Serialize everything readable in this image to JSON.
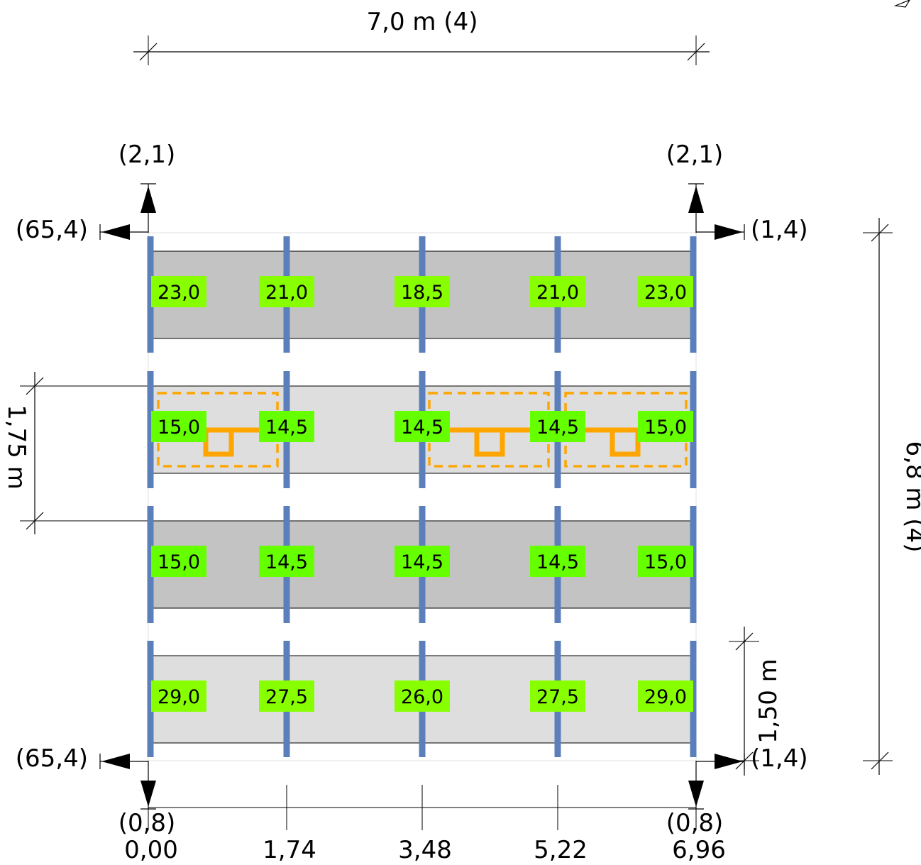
{
  "top_dimension": "7,0 m (4)",
  "right_dimension": "6,8 m (4)",
  "left_dimension": "1,75 m",
  "bottom_right_dimension": "1,50 m",
  "corner_labels": {
    "top_left_up": "(2,1)",
    "top_right_up": "(2,1)",
    "top_left_side": "(65,4)",
    "top_right_side": "(1,4)",
    "bottom_left_side": "(65,4)",
    "bottom_right_side": "(1,4)",
    "bottom_left_down": "(0,8)",
    "bottom_right_down": "(0,8)"
  },
  "axis_ticks": [
    "0,00",
    "1,74",
    "3,48",
    "5,22",
    "6,96"
  ],
  "rows": [
    {
      "values": [
        "23,0",
        "21,0",
        "18,5",
        "21,0",
        "23,0"
      ]
    },
    {
      "values": [
        "15,0",
        "14,5",
        "14,5",
        "14,5",
        "15,0"
      ]
    },
    {
      "values": [
        "15,0",
        "14,5",
        "14,5",
        "14,5",
        "15,0"
      ]
    },
    {
      "values": [
        "29,0",
        "27,5",
        "26,0",
        "27,5",
        "29,0"
      ]
    }
  ],
  "colors": {
    "post": "#5b7fba",
    "label_green": "#66ff00",
    "label_lime": "#88ff00",
    "panel_dark": "#c3c3c3",
    "panel_light": "#dedede",
    "opening": "#ffa500"
  }
}
